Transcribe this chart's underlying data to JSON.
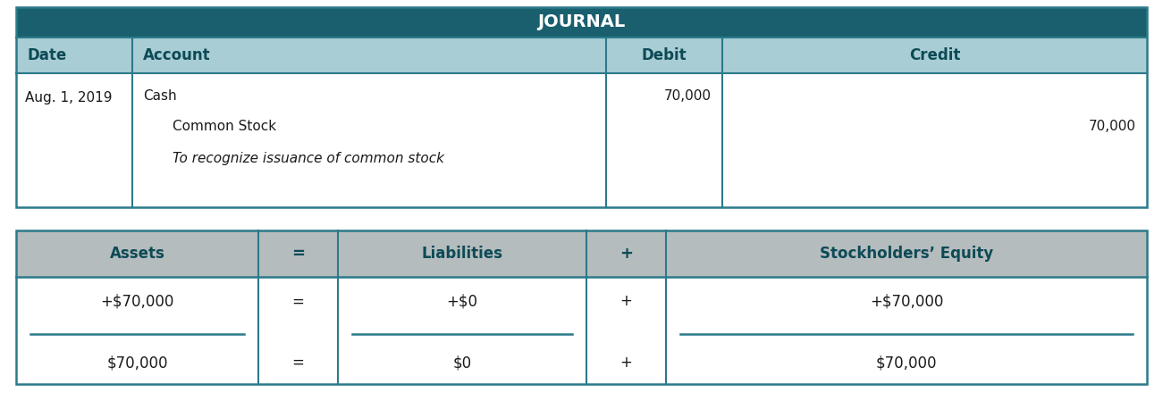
{
  "title": "JOURNAL",
  "title_bg": "#1a5f6e",
  "title_text_color": "#ffffff",
  "header_bg": "#a8cdd4",
  "header_text_color": "#0d4a56",
  "row_bg": "#ffffff",
  "border_color": "#2b7a8a",
  "cell_text_color": "#1a1a1a",
  "col_headers": [
    "Date",
    "Account",
    "Debit",
    "Credit"
  ],
  "date": "Aug. 1, 2019",
  "debit": "70,000",
  "credit": "70,000",
  "eq_header_bg": "#b5bcbe",
  "eq_header_text_color": "#0d4a56",
  "eq_row_bg": "#ffffff",
  "eq_border_color": "#2b7a8a",
  "eq_headers": [
    "Assets",
    "=",
    "Liabilities",
    "+",
    "Stockholders’ Equity"
  ],
  "eq_values_row1": [
    "+$70,000",
    "=",
    "+$0",
    "+",
    "+$70,000"
  ],
  "eq_values_row2": [
    "$70,000",
    "=",
    "$0",
    "+",
    "$70,000"
  ],
  "fig_width": 13.01,
  "fig_height": 4.68,
  "dpi": 100
}
